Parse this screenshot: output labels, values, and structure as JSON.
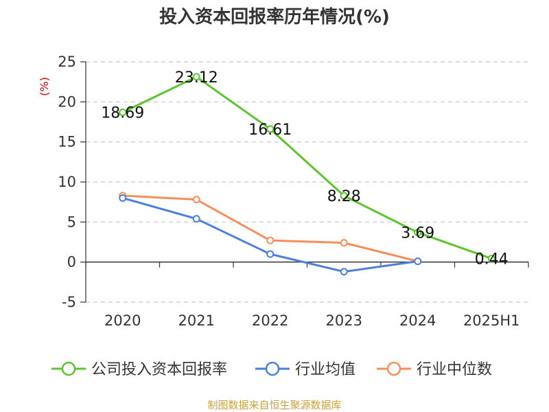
{
  "chart_data": {
    "type": "line",
    "title": "投入资本回报率历年情况(%)",
    "ylabel": "(%)",
    "categories": [
      "2020",
      "2021",
      "2022",
      "2023",
      "2024",
      "2025H1"
    ],
    "ylim": [
      -5,
      25
    ],
    "yticks": [
      25,
      20,
      15,
      10,
      5,
      0,
      -5
    ],
    "grid": true,
    "legend_position": "bottom",
    "series": [
      {
        "name": "公司投入资本回报率",
        "color": "#5cc42c",
        "values": [
          18.69,
          23.12,
          16.61,
          8.28,
          3.69,
          0.44
        ],
        "labels": [
          "18.69",
          "23.12",
          "16.61",
          "8.28",
          "3.69",
          "0.44"
        ]
      },
      {
        "name": "行业均值",
        "color": "#4a7fdc",
        "values": [
          8.0,
          5.4,
          1.0,
          -1.2,
          0.1,
          null
        ]
      },
      {
        "name": "行业中位数",
        "color": "#f58e5a",
        "values": [
          8.3,
          7.8,
          2.7,
          2.4,
          0.1,
          null
        ]
      }
    ],
    "source": "制图数据来自恒生聚源数据库"
  }
}
